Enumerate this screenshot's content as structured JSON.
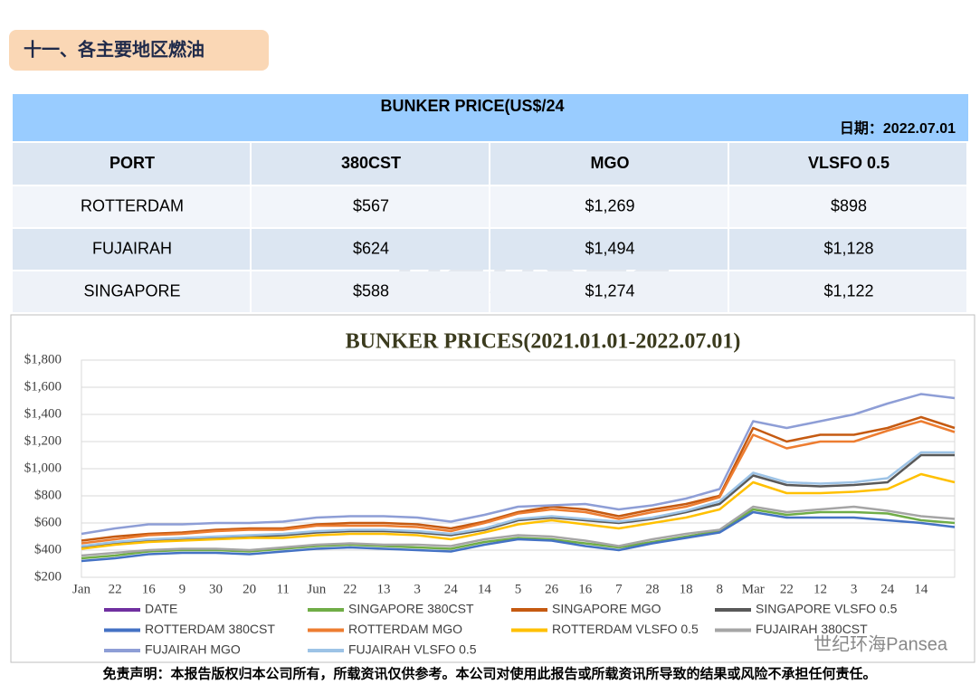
{
  "header": {
    "title": "十一、各主要地区燃油"
  },
  "table": {
    "title": "BUNKER PRICE(US$/24",
    "date": "日期：2022.07.01",
    "columns": [
      "PORT",
      "380CST",
      "MGO",
      "VLSFO 0.5"
    ],
    "rows": [
      [
        "ROTTERDAM",
        "$567",
        "$1,269",
        "$898"
      ],
      [
        "FUJAIRAH",
        "$624",
        "$1,494",
        "$1,128"
      ],
      [
        "SINGAPORE",
        "$588",
        "$1,274",
        "$1,122"
      ]
    ]
  },
  "watermark": "pansea",
  "chart_data": {
    "type": "line",
    "title": "BUNKER PRICES(2021.01.01-2022.07.01)",
    "categories": [
      "Jan",
      "22",
      "16",
      "9",
      "30",
      "20",
      "11",
      "Jun",
      "22",
      "13",
      "3",
      "24",
      "14",
      "5",
      "26",
      "16",
      "7",
      "28",
      "18",
      "8",
      "Mar",
      "22",
      "12",
      "3",
      "24",
      "14",
      null
    ],
    "ylim": [
      200,
      1800
    ],
    "yticks": [
      {
        "value": 200,
        "label": "$200"
      },
      {
        "value": 400,
        "label": "$400"
      },
      {
        "value": 600,
        "label": "$600"
      },
      {
        "value": 800,
        "label": "$800"
      },
      {
        "value": 1000,
        "label": "$1,000"
      },
      {
        "value": 1200,
        "label": "$1,200"
      },
      {
        "value": 1400,
        "label": "$1,400"
      },
      {
        "value": 1600,
        "label": "$1,600"
      },
      {
        "value": 1800,
        "label": "$1,800"
      }
    ],
    "grid": true,
    "series": [
      {
        "name": "DATE",
        "color": "#7030A0",
        "values": [
          null,
          null,
          null,
          null,
          null,
          null,
          null,
          null,
          null,
          null,
          null,
          null,
          null,
          null,
          null,
          null,
          null,
          null,
          null,
          null,
          null,
          null,
          null,
          null,
          null,
          null,
          null
        ]
      },
      {
        "name": "SINGAPORE 380CST",
        "color": "#70AD47",
        "values": [
          340,
          360,
          390,
          400,
          400,
          390,
          410,
          430,
          440,
          430,
          420,
          410,
          460,
          490,
          480,
          450,
          420,
          460,
          500,
          540,
          700,
          660,
          680,
          680,
          670,
          620,
          600
        ]
      },
      {
        "name": "SINGAPORE MGO",
        "color": "#C55A11",
        "values": [
          470,
          500,
          520,
          530,
          550,
          560,
          560,
          590,
          600,
          600,
          590,
          560,
          610,
          680,
          720,
          700,
          650,
          700,
          740,
          800,
          1300,
          1200,
          1250,
          1250,
          1300,
          1380,
          1300
        ]
      },
      {
        "name": "SINGAPORE VLSFO 0.5",
        "color": "#595959",
        "values": [
          420,
          450,
          470,
          480,
          490,
          500,
          510,
          530,
          540,
          540,
          530,
          510,
          550,
          620,
          640,
          620,
          600,
          630,
          680,
          740,
          950,
          880,
          870,
          880,
          900,
          1100,
          1100
        ]
      },
      {
        "name": "ROTTERDAM 380CST",
        "color": "#4472C4",
        "values": [
          320,
          340,
          370,
          380,
          380,
          370,
          390,
          410,
          420,
          410,
          400,
          390,
          440,
          480,
          470,
          430,
          400,
          450,
          490,
          530,
          680,
          640,
          640,
          640,
          620,
          600,
          570
        ]
      },
      {
        "name": "ROTTERDAM MGO",
        "color": "#ED7D31",
        "values": [
          450,
          480,
          510,
          520,
          540,
          550,
          550,
          580,
          580,
          580,
          570,
          540,
          600,
          670,
          700,
          680,
          630,
          680,
          720,
          790,
          1250,
          1150,
          1200,
          1200,
          1280,
          1350,
          1270
        ]
      },
      {
        "name": "ROTTERDAM VLSFO 0.5",
        "color": "#FFC000",
        "values": [
          410,
          440,
          460,
          470,
          480,
          490,
          490,
          510,
          520,
          520,
          510,
          480,
          530,
          590,
          620,
          590,
          560,
          600,
          640,
          700,
          900,
          820,
          820,
          830,
          850,
          960,
          900
        ]
      },
      {
        "name": "FUJAIRAH 380CST",
        "color": "#A5A5A5",
        "values": [
          360,
          380,
          400,
          410,
          410,
          400,
          420,
          440,
          450,
          440,
          440,
          430,
          480,
          510,
          500,
          470,
          430,
          480,
          520,
          550,
          720,
          680,
          700,
          720,
          690,
          650,
          630
        ]
      },
      {
        "name": "FUJAIRAH MGO",
        "color": "#8E9ED6",
        "values": [
          520,
          560,
          590,
          590,
          600,
          600,
          610,
          640,
          650,
          650,
          640,
          610,
          660,
          720,
          730,
          740,
          700,
          730,
          780,
          850,
          1350,
          1300,
          1350,
          1400,
          1480,
          1550,
          1520
        ]
      },
      {
        "name": "FUJAIRAH VLSFO 0.5",
        "color": "#9DC3E6",
        "values": [
          430,
          460,
          480,
          490,
          500,
          510,
          520,
          540,
          550,
          550,
          540,
          520,
          560,
          630,
          650,
          630,
          610,
          640,
          690,
          760,
          970,
          900,
          890,
          900,
          930,
          1120,
          1120
        ]
      }
    ]
  },
  "wechat": "世纪环海Pansea",
  "footer": "免责声明：本报告版权归本公司所有，所载资讯仅供参考。本公司对使用此报告或所载资讯所导致的结果或风险不承担任何责任。"
}
